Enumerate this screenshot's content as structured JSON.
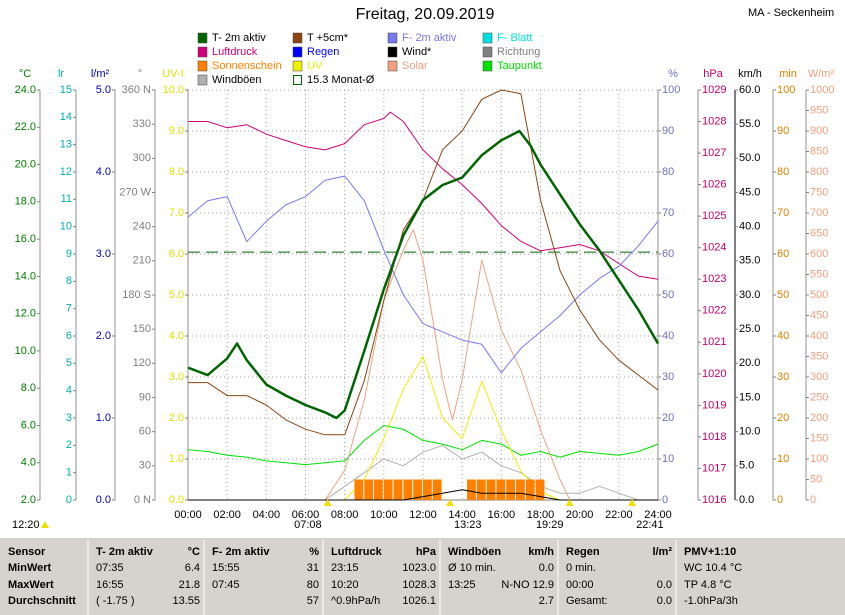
{
  "chart_data": {
    "type": "line",
    "title": "Freitag, 20.09.2019",
    "station": "MA - Seckenheim",
    "grid": true,
    "grid_axis": "uv",
    "xlim": [
      0,
      24
    ],
    "xticks": [
      {
        "value": 0,
        "label": "00:00"
      },
      {
        "value": 2,
        "label": "02:00"
      },
      {
        "value": 4,
        "label": "04:00"
      },
      {
        "value": 6,
        "label": "06:00"
      },
      {
        "value": 8,
        "label": "08:00"
      },
      {
        "value": 10,
        "label": "10:00"
      },
      {
        "value": 12,
        "label": "12:00"
      },
      {
        "value": 14,
        "label": "14:00"
      },
      {
        "value": 16,
        "label": "16:00"
      },
      {
        "value": 18,
        "label": "18:00"
      },
      {
        "value": 20,
        "label": "20:00"
      },
      {
        "value": 22,
        "label": "22:00"
      },
      {
        "value": 24,
        "label": "24:00"
      }
    ],
    "axes": [
      {
        "id": "temp",
        "side": "left",
        "label": "°C",
        "color": "#008000",
        "lim": [
          2,
          24
        ],
        "ticks": [
          {
            "value": 2,
            "label": "2.0"
          },
          {
            "value": 4,
            "label": "4.0"
          },
          {
            "value": 6,
            "label": "6.0"
          },
          {
            "value": 8,
            "label": "8.0"
          },
          {
            "value": 10,
            "label": "10.0"
          },
          {
            "value": 12,
            "label": "12.0"
          },
          {
            "value": 14,
            "label": "14.0"
          },
          {
            "value": 16,
            "label": "16.0"
          },
          {
            "value": 18,
            "label": "18.0"
          },
          {
            "value": 20,
            "label": "20.0"
          },
          {
            "value": 22,
            "label": "22.0"
          },
          {
            "value": 24,
            "label": "24.0"
          }
        ]
      },
      {
        "id": "lr",
        "side": "left",
        "label": "lr",
        "color": "#00b0b0",
        "lim": [
          0,
          15
        ],
        "ticks": [
          0,
          1,
          2,
          3,
          4,
          5,
          6,
          7,
          8,
          9,
          10,
          11,
          12,
          13,
          14,
          15
        ]
      },
      {
        "id": "rain",
        "side": "left",
        "label": "l/m²",
        "color": "#0000c0",
        "lim": [
          0,
          5
        ],
        "ticks": [
          {
            "value": 0,
            "label": "0.0"
          },
          {
            "value": 1,
            "label": "1.0"
          },
          {
            "value": 2,
            "label": "2.0"
          },
          {
            "value": 3,
            "label": "3.0"
          },
          {
            "value": 4,
            "label": "4.0"
          },
          {
            "value": 5,
            "label": "5.0"
          }
        ]
      },
      {
        "id": "dir",
        "side": "left",
        "label": "°",
        "color": "#808080",
        "lim": [
          0,
          360
        ],
        "ticks": [
          {
            "value": 0,
            "label": "0 N"
          },
          30,
          60,
          90,
          120,
          150,
          {
            "value": 180,
            "label": "180 S"
          },
          210,
          240,
          {
            "value": 270,
            "label": "270 W"
          },
          300,
          330,
          {
            "value": 360,
            "label": "360 N"
          }
        ]
      },
      {
        "id": "uv",
        "side": "left",
        "label": "UV-I",
        "color": "#e0e000",
        "lim": [
          0,
          10
        ],
        "ticks": [
          {
            "value": 0,
            "label": "0.0"
          },
          {
            "value": 1,
            "label": "1.0"
          },
          {
            "value": 2,
            "label": "2.0"
          },
          {
            "value": 3,
            "label": "3.0"
          },
          {
            "value": 4,
            "label": "4.0"
          },
          {
            "value": 5,
            "label": "5.0"
          },
          {
            "value": 6,
            "label": "6.0"
          },
          {
            "value": 7,
            "label": "7.0"
          },
          {
            "value": 8,
            "label": "8.0"
          },
          {
            "value": 9,
            "label": "9.0"
          },
          {
            "value": 10,
            "label": "10.0"
          }
        ]
      },
      {
        "id": "hum",
        "side": "right",
        "label": "%",
        "color": "#7070c0",
        "lim": [
          0,
          100
        ],
        "ticks": [
          0,
          10,
          20,
          30,
          40,
          50,
          60,
          70,
          80,
          90,
          100
        ]
      },
      {
        "id": "press",
        "side": "right",
        "label": "hPa",
        "color": "#c00070",
        "lim": [
          1016,
          1029
        ],
        "ticks": [
          1016,
          1017,
          1018,
          1019,
          1020,
          1021,
          1022,
          1023,
          1024,
          1025,
          1026,
          1027,
          1028,
          1029
        ]
      },
      {
        "id": "wind",
        "side": "right",
        "label": "km/h",
        "color": "#000000",
        "lim": [
          0,
          60
        ],
        "ticks": [
          {
            "value": 0,
            "label": "0.0"
          },
          {
            "value": 5,
            "label": "5.0"
          },
          {
            "value": 10,
            "label": "10.0"
          },
          {
            "value": 15,
            "label": "15.0"
          },
          {
            "value": 20,
            "label": "20.0"
          },
          {
            "value": 25,
            "label": "25.0"
          },
          {
            "value": 30,
            "label": "30.0"
          },
          {
            "value": 35,
            "label": "35.0"
          },
          {
            "value": 40,
            "label": "40.0"
          },
          {
            "value": 45,
            "label": "45.0"
          },
          {
            "value": 50,
            "label": "50.0"
          },
          {
            "value": 55,
            "label": "55.0"
          },
          {
            "value": 60,
            "label": "60.0"
          }
        ]
      },
      {
        "id": "min",
        "side": "right",
        "label": "min",
        "color": "#e08000",
        "lim": [
          0,
          100
        ],
        "ticks": [
          0,
          10,
          20,
          30,
          40,
          50,
          60,
          70,
          80,
          90,
          100
        ]
      },
      {
        "id": "solar",
        "side": "right",
        "label": "W/m²",
        "color": "#f0a080",
        "lim": [
          0,
          1000
        ],
        "ticks": [
          0,
          50,
          100,
          150,
          200,
          250,
          300,
          350,
          400,
          450,
          500,
          550,
          600,
          650,
          700,
          750,
          800,
          850,
          900,
          950,
          1000
        ]
      }
    ],
    "series": [
      {
        "name": "T- 2m aktiv",
        "color": "#006400",
        "axis": "temp",
        "bold": true,
        "x": [
          0,
          1,
          2,
          2.5,
          3,
          4,
          5,
          6,
          7,
          7.58,
          8,
          9,
          10,
          11,
          12,
          13,
          14,
          15,
          16,
          16.92,
          17.5,
          18,
          19,
          20,
          21,
          22,
          23,
          24
        ],
        "values": [
          9.1,
          8.7,
          9.6,
          10.4,
          9.5,
          8.2,
          7.6,
          7.1,
          6.7,
          6.4,
          6.8,
          10.0,
          13.3,
          16.2,
          18.1,
          18.9,
          19.3,
          20.5,
          21.3,
          21.8,
          21.0,
          20.0,
          18.4,
          16.8,
          15.4,
          13.8,
          12.2,
          10.4
        ]
      },
      {
        "name": "T +5cm*",
        "color": "#8b4513",
        "axis": "temp",
        "x": [
          0,
          1,
          2,
          3,
          4,
          5,
          6,
          7,
          8,
          9,
          10,
          11,
          12,
          13,
          14,
          15,
          16,
          17,
          18,
          19,
          20,
          21,
          22,
          23,
          24
        ],
        "values": [
          8.3,
          8.3,
          7.6,
          7.6,
          7.1,
          6.3,
          5.8,
          5.5,
          5.5,
          8.4,
          12.7,
          16.5,
          18.1,
          20.8,
          21.8,
          23.5,
          24.0,
          23.8,
          18.1,
          14.3,
          12.2,
          10.6,
          9.5,
          8.7,
          7.9
        ]
      },
      {
        "name": "F- 2m aktiv",
        "color": "#7878f0",
        "axis": "hum",
        "x": [
          0,
          1,
          2,
          3,
          4,
          5,
          6,
          7,
          8,
          9,
          10,
          11,
          12,
          13,
          14,
          15,
          16,
          17,
          18,
          19,
          20,
          21,
          22,
          23,
          24
        ],
        "values": [
          69,
          73,
          74,
          63,
          68,
          72,
          74,
          78,
          79,
          73,
          61,
          50,
          43,
          41,
          39,
          38,
          31,
          37,
          41,
          45,
          50,
          54,
          57,
          62,
          68
        ]
      },
      {
        "name": "F- Blatt",
        "color": "#00e0e0"
      },
      {
        "name": "Luftdruck",
        "color": "#d0007a",
        "axis": "press",
        "x": [
          0,
          1,
          2,
          3,
          4,
          5,
          6,
          7,
          8,
          9,
          10,
          10.33,
          11,
          12,
          13,
          14,
          15,
          16,
          17,
          18,
          19,
          20,
          21,
          22,
          23,
          24
        ],
        "values": [
          1028.0,
          1028.0,
          1027.8,
          1027.9,
          1027.6,
          1027.4,
          1027.2,
          1027.1,
          1027.3,
          1027.9,
          1028.1,
          1028.3,
          1028.0,
          1027.1,
          1026.5,
          1026.0,
          1025.4,
          1024.7,
          1024.2,
          1023.9,
          1024.0,
          1024.1,
          1023.9,
          1023.5,
          1023.1,
          1023.0
        ]
      },
      {
        "name": "Regen",
        "color": "#0000ff"
      },
      {
        "name": "Wind*",
        "color": "#000000",
        "axis": "wind",
        "x": [
          0,
          1,
          2,
          3,
          4,
          5,
          6,
          7,
          8,
          9,
          10,
          11,
          12,
          13,
          14,
          15,
          16,
          17,
          18,
          19,
          20,
          21,
          22,
          23,
          24
        ],
        "values": [
          0,
          0,
          0,
          0,
          0,
          0,
          0,
          0,
          0,
          0,
          0,
          0,
          0.5,
          1,
          1.5,
          1,
          1,
          1,
          0.5,
          0,
          0,
          0,
          0,
          0,
          0
        ]
      },
      {
        "name": "Richtung",
        "color": "#808080"
      },
      {
        "name": "Sonnenschein",
        "color": "#ff8000",
        "axis": "min",
        "style": "bars",
        "x": [
          8.5,
          9,
          9.5,
          10,
          10.5,
          11,
          11.5,
          12,
          12.5,
          14.25,
          14.75,
          15.25,
          15.75,
          16.25,
          16.75,
          17.25,
          17.75
        ],
        "values": [
          5,
          5,
          5,
          5,
          5,
          5,
          5,
          5,
          5,
          5,
          5,
          5,
          5,
          5,
          5,
          5,
          5
        ]
      },
      {
        "name": "UV",
        "color": "#f0f000",
        "axis": "uv",
        "x": [
          0,
          1,
          2,
          3,
          4,
          5,
          6,
          7,
          8,
          9,
          10,
          11,
          12,
          13,
          14,
          15,
          16,
          17,
          18,
          19,
          20,
          21,
          22,
          23,
          24
        ],
        "values": [
          0,
          0,
          0,
          0,
          0,
          0,
          0,
          0,
          0,
          0.5,
          1.5,
          2.7,
          3.5,
          2.0,
          1.5,
          2.9,
          1.7,
          0.7,
          0.2,
          0,
          0,
          0,
          0,
          0,
          0
        ]
      },
      {
        "name": "Solar",
        "color": "#f0a080",
        "axis": "solar",
        "x": [
          0,
          7,
          8,
          9,
          10,
          11,
          11.5,
          12,
          13,
          13.5,
          14,
          15,
          16,
          17,
          18,
          19,
          19.5,
          20,
          24
        ],
        "values": [
          0,
          0,
          73,
          244,
          488,
          610,
          659,
          585,
          293,
          195,
          293,
          585,
          415,
          317,
          171,
          49,
          0,
          0,
          0
        ]
      },
      {
        "name": "Taupunkt",
        "color": "#00e000",
        "axis": "temp",
        "x": [
          0,
          1,
          2,
          3,
          4,
          5,
          6,
          7,
          8,
          9,
          10,
          11,
          12,
          13,
          14,
          15,
          16,
          17,
          18,
          19,
          20,
          21,
          22,
          23,
          24
        ],
        "values": [
          4.7,
          4.6,
          4.4,
          4.3,
          4.1,
          4.0,
          3.9,
          4.0,
          4.1,
          5.2,
          6.0,
          5.8,
          5.2,
          5.0,
          4.7,
          5.2,
          5.0,
          4.4,
          4.6,
          4.3,
          4.6,
          4.5,
          4.4,
          4.6,
          5.0
        ]
      },
      {
        "name": "Windböen",
        "color": "#b0b0b0",
        "axis": "wind",
        "x": [
          0,
          1,
          2,
          3,
          4,
          5,
          6,
          7,
          8,
          9,
          10,
          11,
          12,
          13,
          14,
          15,
          16,
          17,
          18,
          19,
          20,
          21,
          22,
          23,
          24
        ],
        "values": [
          0,
          0,
          0,
          0,
          0,
          0,
          0,
          0,
          2,
          4,
          6,
          5,
          7,
          8,
          6,
          7,
          5,
          4,
          2,
          1,
          1,
          2,
          1,
          0,
          0
        ]
      },
      {
        "name": "15.3 Monat-Ø",
        "color": "#006400",
        "axis": "temp",
        "style": "hline",
        "values": [
          15.3
        ]
      }
    ],
    "left_time": "12:20",
    "sun_events": [
      {
        "x": 7.13,
        "label": "07:08"
      },
      {
        "x": 13.38,
        "label": "13:23"
      },
      {
        "x": 19.48,
        "label": "19:29"
      },
      {
        "x": 22.68,
        "label": "22:41"
      }
    ]
  },
  "table": {
    "sensor_label": "Sensor",
    "row_labels": [
      "MinWert",
      "MaxWert",
      "Durchschnitt"
    ],
    "groups": [
      {
        "name": "T- 2m aktiv",
        "unit": "°C",
        "rows": [
          {
            "left": "07:35",
            "right": "6.4"
          },
          {
            "left": "16:55",
            "right": "21.8"
          },
          {
            "left": "( -1.75 )",
            "right": "13.55"
          }
        ]
      },
      {
        "name": "F- 2m aktiv",
        "unit": "%",
        "rows": [
          {
            "left": "15:55",
            "right": "31"
          },
          {
            "left": "07:45",
            "right": "80"
          },
          {
            "right": "57"
          }
        ]
      },
      {
        "name": "Luftdruck",
        "unit": "hPa",
        "rows": [
          {
            "left": "23:15",
            "right": "1023.0"
          },
          {
            "left": "10:20",
            "right": "1028.3"
          },
          {
            "left": "^0.9hPa/h",
            "right": "1026.1"
          }
        ]
      },
      {
        "name": "Windböen",
        "unit": "km/h",
        "rows": [
          {
            "left": "Ø 10 min.",
            "right": "0.0"
          },
          {
            "left": "13:25",
            "right": "N-NO 12.9"
          },
          {
            "right": "2.7"
          }
        ]
      },
      {
        "name": "Regen",
        "unit": "l/m²",
        "rows": [
          {
            "left": "0 min."
          },
          {
            "left": "00:00",
            "right": "0.0"
          },
          {
            "left": "Gesamt:",
            "right": "0.0"
          }
        ]
      },
      {
        "name": "PMV+1:10",
        "rows": [
          {
            "left": "WC 10.4 °C"
          },
          {
            "left": "TP 4.8 °C"
          },
          {
            "left": "-1.0hPa/3h"
          }
        ]
      }
    ]
  }
}
